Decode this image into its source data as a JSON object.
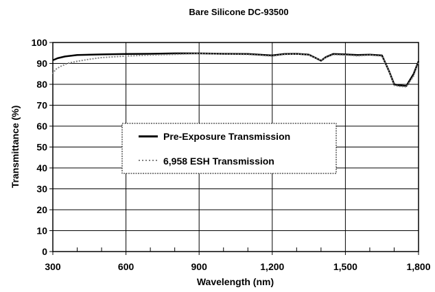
{
  "chart_data": {
    "type": "line",
    "title": "Bare Silicone DC-93500",
    "xlabel": "Wavelength (nm)",
    "ylabel": "Transmittance (%)",
    "xlim": [
      300,
      1800
    ],
    "ylim": [
      0,
      100
    ],
    "x_ticks": [
      300,
      600,
      900,
      1200,
      1500,
      1800
    ],
    "x_tick_labels": [
      "300",
      "600",
      "900",
      "1,200",
      "1,500",
      "1,800"
    ],
    "y_ticks": [
      0,
      10,
      20,
      30,
      40,
      50,
      60,
      70,
      80,
      90,
      100
    ],
    "y_tick_labels": [
      "0",
      "10",
      "20",
      "30",
      "40",
      "50",
      "60",
      "70",
      "80",
      "90",
      "100"
    ],
    "x_minor_step": 100,
    "grid": true,
    "legend_position": "center",
    "series": [
      {
        "name": "Pre-Exposure Transmission",
        "color": "#000000",
        "style": "solid",
        "x": [
          300,
          320,
          350,
          400,
          500,
          600,
          700,
          800,
          900,
          1000,
          1100,
          1200,
          1250,
          1300,
          1350,
          1380,
          1400,
          1420,
          1450,
          1500,
          1550,
          1600,
          1650,
          1680,
          1700,
          1720,
          1750,
          1780,
          1800
        ],
        "y": [
          91.5,
          92.5,
          93.3,
          94,
          94.3,
          94.5,
          94.6,
          94.8,
          94.8,
          94.6,
          94.5,
          93.8,
          94.5,
          94.6,
          94.2,
          92.5,
          91.3,
          93,
          94.5,
          94.3,
          94,
          94.2,
          93.8,
          86,
          80,
          79.5,
          79.2,
          85,
          91
        ]
      },
      {
        "name": "6,958 ESH Transmission",
        "color": "#808080",
        "style": "dotted",
        "x": [
          300,
          310,
          330,
          360,
          400,
          450,
          500,
          600,
          700,
          800,
          900,
          1000,
          1100,
          1200,
          1250,
          1300,
          1350,
          1380,
          1400,
          1420,
          1450,
          1500,
          1550,
          1600,
          1650,
          1680,
          1700,
          1720,
          1750,
          1780,
          1800
        ],
        "y": [
          85,
          87,
          88.5,
          90,
          91,
          92,
          92.8,
          93.5,
          94,
          94.3,
          94.8,
          94.5,
          94.3,
          93.5,
          94.3,
          94.5,
          94,
          92.5,
          91.5,
          92.8,
          94.2,
          94,
          93.6,
          94,
          93.5,
          86,
          79.5,
          79,
          78.8,
          84,
          90.5
        ]
      }
    ]
  }
}
